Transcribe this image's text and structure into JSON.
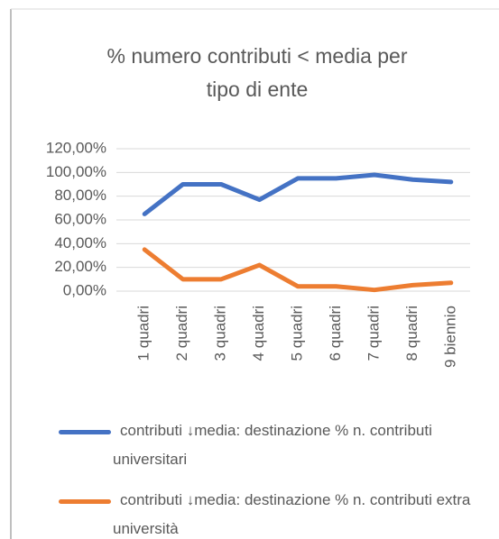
{
  "chart_data": {
    "type": "line",
    "title": "% numero contributi < media per tipo di ente",
    "categories": [
      "1 quadri",
      "2 quadri",
      "3 quadri",
      "4 quadri",
      "5 quadri",
      "6 quadri",
      "7 quadri",
      "8 quadri",
      "9 biennio"
    ],
    "series": [
      {
        "name": "contributi ↓media: destinazione % n. contributi universitari",
        "color": "#4472c4",
        "values": [
          65,
          90,
          90,
          77,
          95,
          95,
          98,
          94,
          92
        ]
      },
      {
        "name": "contributi ↓media: destinazione % n. contributi extra università",
        "color": "#ed7d31",
        "values": [
          35,
          10,
          10,
          22,
          4,
          4,
          1,
          5,
          7
        ]
      }
    ],
    "ylim": [
      0,
      120
    ],
    "yticks": [
      {
        "value": 0,
        "label": "0,00%"
      },
      {
        "value": 20,
        "label": "20,00%"
      },
      {
        "value": 40,
        "label": "40,00%"
      },
      {
        "value": 60,
        "label": "60,00%"
      },
      {
        "value": 80,
        "label": "80,00%"
      },
      {
        "value": 100,
        "label": "100,00%"
      },
      {
        "value": 120,
        "label": "120,00%"
      }
    ],
    "grid": true,
    "legend": "bottom"
  }
}
